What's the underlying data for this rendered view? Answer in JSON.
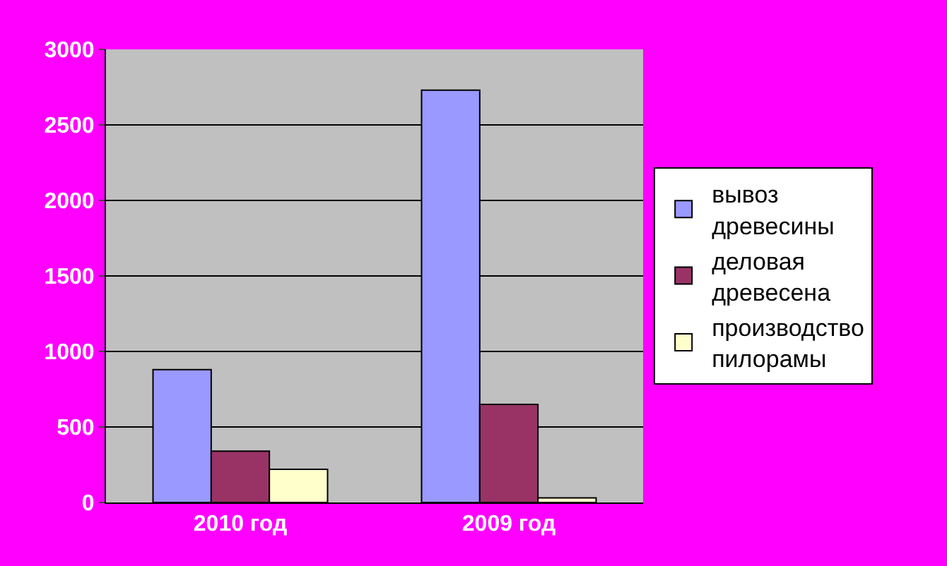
{
  "chart_data": {
    "type": "bar",
    "categories": [
      "2010 год",
      "2009 год"
    ],
    "series": [
      {
        "name": "вывоз древесины",
        "color": "#9999ff",
        "values": [
          880,
          2730
        ]
      },
      {
        "name": "деловая древесена",
        "color": "#993366",
        "values": [
          340,
          650
        ]
      },
      {
        "name": "производство пилорамы",
        "color": "#ffffcc",
        "values": [
          220,
          30
        ]
      }
    ],
    "ylim": [
      0,
      3000
    ],
    "yticks": [
      0,
      500,
      1000,
      1500,
      2000,
      2500,
      3000
    ],
    "grid": "y",
    "legend": "right"
  }
}
